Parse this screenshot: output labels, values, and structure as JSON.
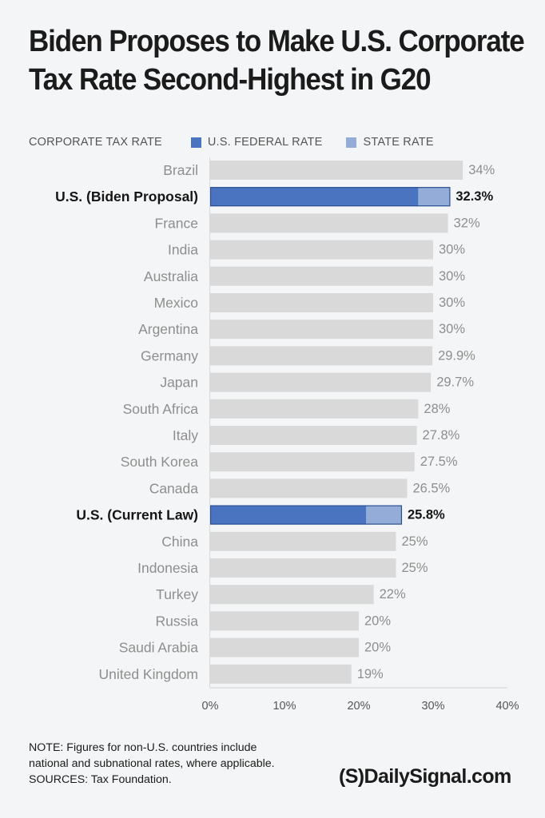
{
  "title_line1": "Biden Proposes to Make U.S. Corporate",
  "title_line2": "Tax Rate Second-Highest in G20",
  "legend": {
    "label": "CORPORATE TAX RATE",
    "federal": "U.S. FEDERAL RATE",
    "state": "STATE RATE"
  },
  "colors": {
    "federal": "#4a74c0",
    "state": "#93acd8",
    "other": "#d9d9d9",
    "highlight_border": "#2b4f94"
  },
  "note_line1": "NOTE: Figures for non-U.S. countries include",
  "note_line2": "national and subnational rates, where applicable.",
  "note_line3": "SOURCES: Tax Foundation.",
  "brand": {
    "logo": "(S)",
    "name": "DailySignal.com"
  },
  "chart_data": {
    "type": "bar",
    "orientation": "horizontal",
    "stacked": true,
    "xlim": [
      0,
      40
    ],
    "x_ticks": [
      "0%",
      "10%",
      "20%",
      "30%",
      "40%"
    ],
    "tick_values": [
      0,
      10,
      20,
      30,
      40
    ],
    "rows": [
      {
        "label": "Brazil",
        "value": 34,
        "value_label": "34%"
      },
      {
        "label": "U.S. (Biden Proposal)",
        "value": 32.3,
        "value_label": "32.3%",
        "highlight": true,
        "federal": 28,
        "state": 4.3
      },
      {
        "label": "France",
        "value": 32,
        "value_label": "32%"
      },
      {
        "label": "India",
        "value": 30,
        "value_label": "30%"
      },
      {
        "label": "Australia",
        "value": 30,
        "value_label": "30%"
      },
      {
        "label": "Mexico",
        "value": 30,
        "value_label": "30%"
      },
      {
        "label": "Argentina",
        "value": 30,
        "value_label": "30%"
      },
      {
        "label": "Germany",
        "value": 29.9,
        "value_label": "29.9%"
      },
      {
        "label": "Japan",
        "value": 29.7,
        "value_label": "29.7%"
      },
      {
        "label": "South Africa",
        "value": 28,
        "value_label": "28%"
      },
      {
        "label": "Italy",
        "value": 27.8,
        "value_label": "27.8%"
      },
      {
        "label": "South Korea",
        "value": 27.5,
        "value_label": "27.5%"
      },
      {
        "label": "Canada",
        "value": 26.5,
        "value_label": "26.5%"
      },
      {
        "label": "U.S. (Current Law)",
        "value": 25.8,
        "value_label": "25.8%",
        "highlight": true,
        "federal": 21,
        "state": 4.8
      },
      {
        "label": "China",
        "value": 25,
        "value_label": "25%"
      },
      {
        "label": "Indonesia",
        "value": 25,
        "value_label": "25%"
      },
      {
        "label": "Turkey",
        "value": 22,
        "value_label": "22%"
      },
      {
        "label": "Russia",
        "value": 20,
        "value_label": "20%"
      },
      {
        "label": "Saudi Arabia",
        "value": 20,
        "value_label": "20%"
      },
      {
        "label": "United Kingdom",
        "value": 19,
        "value_label": "19%"
      }
    ]
  }
}
